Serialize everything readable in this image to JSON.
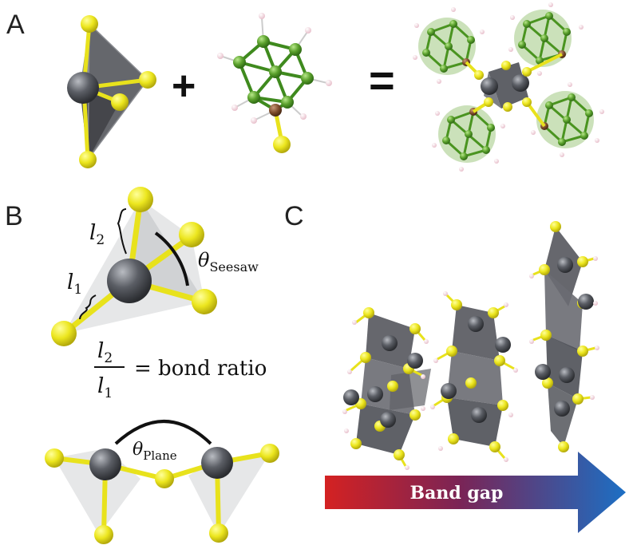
{
  "panels": {
    "a": {
      "label": "A",
      "plus": "+",
      "equals": "="
    },
    "b": {
      "label": "B",
      "l2": "l",
      "l2_sub": "2",
      "l1": "l",
      "l1_sub": "1",
      "theta": "θ",
      "theta_seesaw_sub": "Seesaw",
      "theta_plane_sub": "Plane",
      "frac_num": "l",
      "frac_num_sub": "2",
      "frac_den": "l",
      "frac_den_sub": "1",
      "equation_rhs": "= bond ratio"
    },
    "c": {
      "label": "C",
      "arrow_label": "Band gap"
    }
  },
  "colors": {
    "sulfur": "#e8e21c",
    "metal": "#55575c",
    "polyhedron": "#5a5c62",
    "boron": "#5aa02c",
    "carbon": "#7a4a2a",
    "hydrogen": "#f3d9e0",
    "arrow_start": "#d32020",
    "arrow_end": "#1f6fc2"
  }
}
